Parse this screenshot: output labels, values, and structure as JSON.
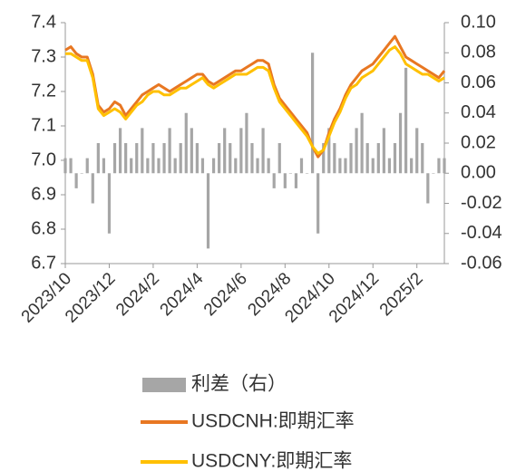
{
  "chart_data": {
    "type": "line",
    "categories": [
      "2023/10",
      null,
      null,
      null,
      null,
      null,
      null,
      null,
      "2023/12",
      null,
      null,
      null,
      null,
      null,
      null,
      null,
      "2024/2",
      null,
      null,
      null,
      null,
      null,
      null,
      null,
      "2024/4",
      null,
      null,
      null,
      null,
      null,
      null,
      null,
      "2024/6",
      null,
      null,
      null,
      null,
      null,
      null,
      null,
      "2024/8",
      null,
      null,
      null,
      null,
      null,
      null,
      null,
      "2024/10",
      null,
      null,
      null,
      null,
      null,
      null,
      null,
      "2024/12",
      null,
      null,
      null,
      null,
      null,
      null,
      null,
      "2025/2",
      null,
      null,
      null,
      null,
      null
    ],
    "series": [
      {
        "name": "利差（右）",
        "type": "bar",
        "axis": "y2",
        "color": "#a6a6a6",
        "values": [
          0.01,
          0.01,
          -0.01,
          0.0,
          0.01,
          -0.02,
          0.02,
          0.01,
          -0.04,
          0.02,
          0.03,
          0.02,
          0.01,
          0.02,
          0.03,
          0.01,
          0.02,
          0.01,
          0.02,
          0.03,
          0.01,
          0.02,
          0.04,
          0.03,
          0.02,
          0.01,
          -0.05,
          0.01,
          0.02,
          0.03,
          0.02,
          0.01,
          0.03,
          0.04,
          0.02,
          0.01,
          0.03,
          0.01,
          -0.01,
          0.02,
          -0.01,
          0.0,
          -0.01,
          0.01,
          0.0,
          0.08,
          -0.04,
          0.02,
          0.03,
          0.02,
          0.01,
          0.01,
          0.02,
          0.03,
          0.04,
          0.02,
          0.01,
          0.02,
          0.03,
          0.01,
          0.02,
          0.04,
          0.07,
          0.01,
          0.03,
          0.02,
          -0.02,
          0.0,
          0.01,
          0.01
        ]
      },
      {
        "name": "USDCNH:即期汇率",
        "type": "line",
        "color": "#e87722",
        "values": [
          7.32,
          7.33,
          7.31,
          7.3,
          7.3,
          7.25,
          7.16,
          7.14,
          7.15,
          7.17,
          7.16,
          7.13,
          7.15,
          7.17,
          7.19,
          7.2,
          7.21,
          7.22,
          7.21,
          7.2,
          7.21,
          7.22,
          7.23,
          7.24,
          7.25,
          7.25,
          7.23,
          7.22,
          7.23,
          7.24,
          7.25,
          7.26,
          7.26,
          7.27,
          7.28,
          7.29,
          7.29,
          7.28,
          7.22,
          7.18,
          7.16,
          7.14,
          7.12,
          7.1,
          7.08,
          7.04,
          7.01,
          7.03,
          7.08,
          7.12,
          7.15,
          7.19,
          7.22,
          7.24,
          7.26,
          7.27,
          7.28,
          7.3,
          7.32,
          7.34,
          7.36,
          7.33,
          7.3,
          7.29,
          7.28,
          7.27,
          7.26,
          7.25,
          7.24,
          7.26
        ]
      },
      {
        "name": "USDCNY:即期汇率",
        "type": "line",
        "color": "#ffc000",
        "values": [
          7.31,
          7.31,
          7.3,
          7.29,
          7.29,
          7.24,
          7.15,
          7.13,
          7.14,
          7.15,
          7.14,
          7.12,
          7.14,
          7.16,
          7.17,
          7.19,
          7.2,
          7.2,
          7.19,
          7.19,
          7.2,
          7.21,
          7.21,
          7.22,
          7.23,
          7.24,
          7.22,
          7.21,
          7.22,
          7.23,
          7.24,
          7.25,
          7.25,
          7.25,
          7.26,
          7.27,
          7.27,
          7.26,
          7.21,
          7.17,
          7.15,
          7.13,
          7.11,
          7.09,
          7.07,
          7.04,
          7.02,
          7.03,
          7.07,
          7.11,
          7.14,
          7.18,
          7.21,
          7.22,
          7.24,
          7.25,
          7.26,
          7.28,
          7.3,
          7.32,
          7.33,
          7.31,
          7.28,
          7.27,
          7.26,
          7.25,
          7.25,
          7.24,
          7.23,
          7.24
        ]
      }
    ],
    "ylim": [
      6.7,
      7.4
    ],
    "yticks": [
      7.4,
      7.3,
      7.2,
      7.1,
      {
        "value": 7,
        "label": "7.0"
      },
      6.9,
      6.8,
      6.7
    ],
    "y2lim": [
      -0.06,
      0.1
    ],
    "y2ticks": [
      {
        "value": 0.1,
        "label": "0.10"
      },
      0.08,
      0.06,
      0.04,
      0.02,
      {
        "value": 0,
        "label": "0.00"
      },
      -0.02,
      -0.04,
      -0.06
    ],
    "legend": "bottom"
  }
}
